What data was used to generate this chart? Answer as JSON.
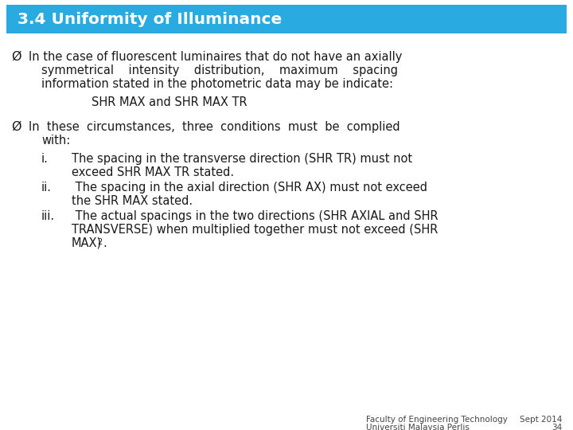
{
  "title": "3.4 Uniformity of Illuminance",
  "title_bg_color": "#29ABE2",
  "title_text_color": "#FFFFFF",
  "bg_color": "#FFFFFF",
  "text_color": "#1A1A1A",
  "footer_left1": "Faculty of Engineering Technology",
  "footer_left2": "Universiti Malaysia Perlis",
  "footer_right1": "Sept 2014",
  "footer_right2": "34",
  "font_main": "DejaVu Sans",
  "font_size_title": 14.5,
  "font_size_body": 10.5,
  "font_size_footer": 7.5
}
